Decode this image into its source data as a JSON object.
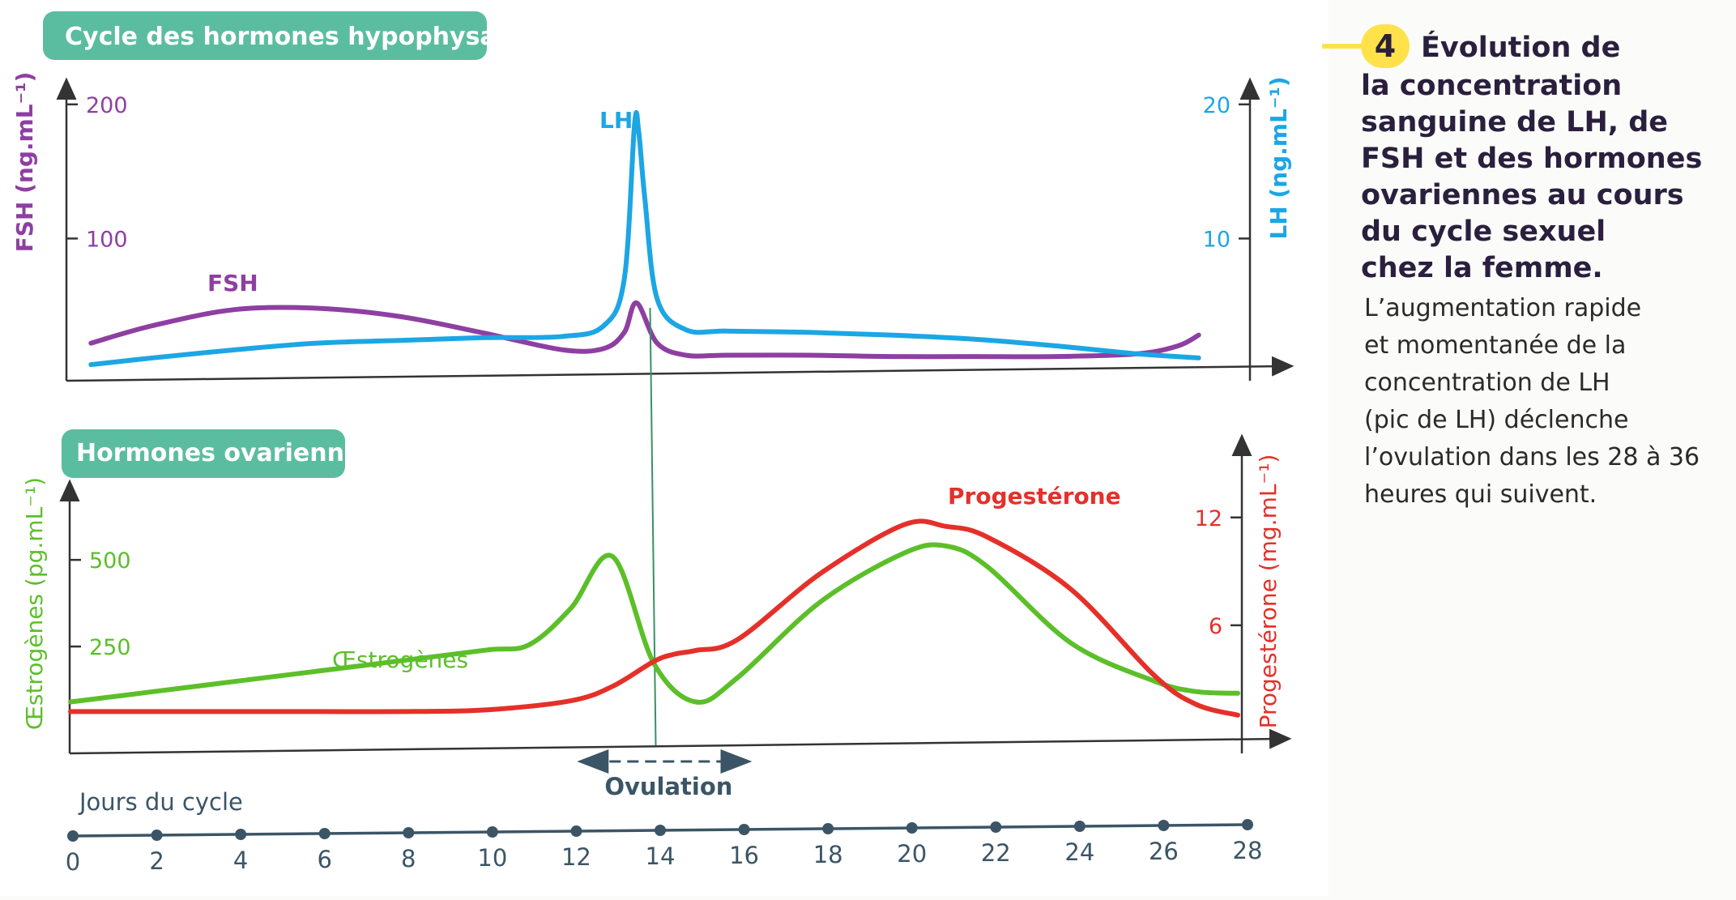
{
  "caption": {
    "number": "4",
    "title_lines": [
      "Évolution de",
      "la concentration",
      "sanguine de LH, de",
      "FSH et des hormones",
      "ovariennes au cours",
      "du cycle sexuel",
      "chez la femme."
    ],
    "body_lines": [
      "L’augmentation rapide",
      "et momentanée de la",
      "concentration de LH",
      "(pic de LH) déclenche",
      "l’ovulation dans les 28 à 36",
      "heures qui suivent."
    ]
  },
  "colors": {
    "fsh": "#8e3fa2",
    "lh": "#1ca6e4",
    "estrogen": "#5cbf2a",
    "progesterone": "#e5302a",
    "badge": "#5bbd9f",
    "timeline": "#3b5566",
    "ovulation_line": "#3a8f6a"
  },
  "chart_data": [
    {
      "type": "line",
      "title": "Cycle des hormones hypophysaires",
      "xlim": [
        0,
        28
      ],
      "y_left": {
        "label": "FSH (ng.mL⁻¹)",
        "ticks": [
          "100",
          "200"
        ],
        "ylim": [
          0,
          215
        ]
      },
      "y_right": {
        "label": "LH (ng.mL⁻¹)",
        "ticks": [
          "10",
          "20"
        ],
        "ylim": [
          0,
          21.5
        ]
      },
      "series": [
        {
          "name": "FSH",
          "axis": "left",
          "x": [
            0.5,
            2,
            4,
            6,
            8,
            10,
            12,
            13,
            13.5,
            13.8,
            14.3,
            15,
            16,
            18,
            20,
            22,
            24,
            26,
            27,
            27.5
          ],
          "values": [
            22,
            35,
            47,
            48,
            42,
            30,
            17,
            18,
            30,
            52,
            22,
            13,
            13,
            13,
            12,
            12,
            12,
            14,
            20,
            28
          ]
        },
        {
          "name": "LH",
          "axis": "right",
          "x": [
            0.5,
            2,
            4,
            6,
            8,
            10,
            12,
            13,
            13.5,
            13.75,
            13.85,
            14,
            14.3,
            15,
            16,
            18,
            20,
            22,
            24,
            26,
            27.5
          ],
          "values": [
            0.6,
            1.1,
            1.7,
            2.2,
            2.4,
            2.6,
            2.7,
            3.5,
            7,
            18.5,
            18,
            13,
            5.5,
            3.2,
            3.1,
            3.0,
            2.8,
            2.5,
            2.0,
            1.4,
            1.1
          ]
        }
      ]
    },
    {
      "type": "line",
      "title": "Hormones ovariennes",
      "xlim": [
        0,
        28
      ],
      "y_left": {
        "label": "Œstrogènes (pg.mL⁻¹)",
        "ticks": [
          "250",
          "500"
        ],
        "ylim": [
          0,
          830
        ]
      },
      "y_right": {
        "label": "Progestérone (mg.mL⁻¹)",
        "ticks": [
          "6",
          "12"
        ],
        "ylim": [
          0,
          16
        ]
      },
      "series": [
        {
          "name": "Œstrogènes",
          "axis": "left",
          "x": [
            0,
            2,
            4,
            6,
            8,
            10,
            11,
            12,
            13,
            14,
            15,
            16,
            18,
            20,
            21,
            22,
            24,
            26,
            27,
            28
          ],
          "values": [
            90,
            120,
            150,
            180,
            210,
            240,
            255,
            360,
            510,
            200,
            90,
            160,
            380,
            520,
            540,
            480,
            260,
            150,
            120,
            115
          ]
        },
        {
          "name": "Progestérone",
          "axis": "right",
          "x": [
            0,
            2,
            4,
            6,
            8,
            10,
            12,
            13,
            14,
            14.5,
            15,
            16,
            18,
            20,
            21,
            22,
            24,
            26,
            27,
            28
          ],
          "values": [
            1.2,
            1.2,
            1.2,
            1.2,
            1.2,
            1.3,
            1.8,
            2.6,
            4.0,
            4.4,
            4.6,
            5.2,
            8.9,
            11.6,
            11.5,
            10.9,
            8.0,
            3.2,
            1.6,
            1.0
          ]
        }
      ]
    }
  ],
  "ovulation": {
    "label": "Ovulation",
    "day": 14,
    "range": [
      12.5,
      16
    ]
  },
  "timeline": {
    "label": "Jours du cycle",
    "ticks": [
      "0",
      "2",
      "4",
      "6",
      "8",
      "10",
      "12",
      "14",
      "16",
      "18",
      "20",
      "22",
      "24",
      "26",
      "28"
    ]
  }
}
